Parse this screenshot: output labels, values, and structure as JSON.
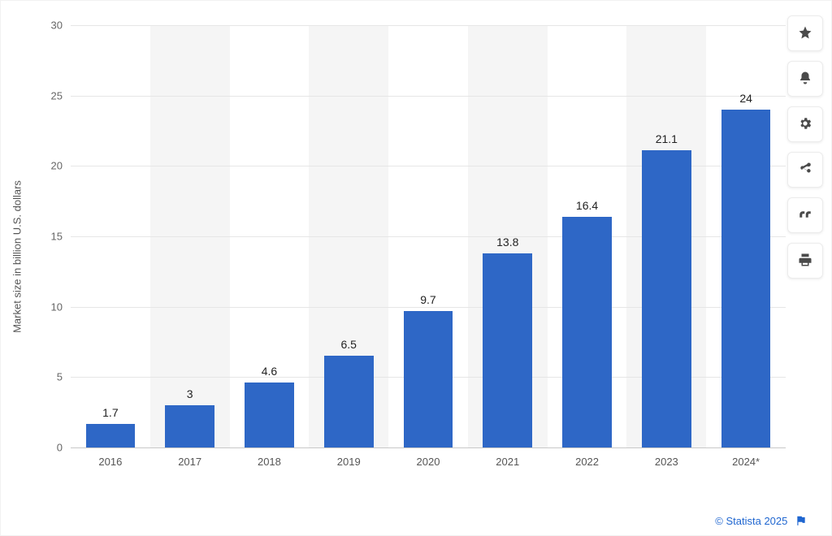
{
  "chart": {
    "type": "bar",
    "y_axis_title": "Market size in billion U.S. dollars",
    "categories": [
      "2016",
      "2017",
      "2018",
      "2019",
      "2020",
      "2021",
      "2022",
      "2023",
      "2024*"
    ],
    "values": [
      1.7,
      3,
      4.6,
      6.5,
      9.7,
      13.8,
      16.4,
      21.1,
      24
    ],
    "value_labels": [
      "1.7",
      "3",
      "4.6",
      "6.5",
      "9.7",
      "13.8",
      "16.4",
      "21.1",
      "24"
    ],
    "bar_color": "#2e67c6",
    "background_color": "#ffffff",
    "band_color": "#f5f5f5",
    "y_min": 0,
    "y_max": 30,
    "y_tick_step": 5,
    "y_ticks": [
      0,
      5,
      10,
      15,
      20,
      25,
      30
    ],
    "grid_color": "#e6e6e6",
    "axis_color": "#c8c8c8",
    "bar_width_ratio": 0.62,
    "label_fontsize": 14,
    "tick_fontsize": 13,
    "axis_title_fontsize": 13
  },
  "attribution": {
    "text": "© Statista 2025",
    "link_color": "#1f66d0",
    "flag_color": "#1f66d0"
  },
  "toolbar": {
    "items": [
      {
        "name": "favorite",
        "icon": "star"
      },
      {
        "name": "notifications",
        "icon": "bell"
      },
      {
        "name": "settings",
        "icon": "gear"
      },
      {
        "name": "share",
        "icon": "share"
      },
      {
        "name": "cite",
        "icon": "quote"
      },
      {
        "name": "print",
        "icon": "print"
      }
    ]
  }
}
